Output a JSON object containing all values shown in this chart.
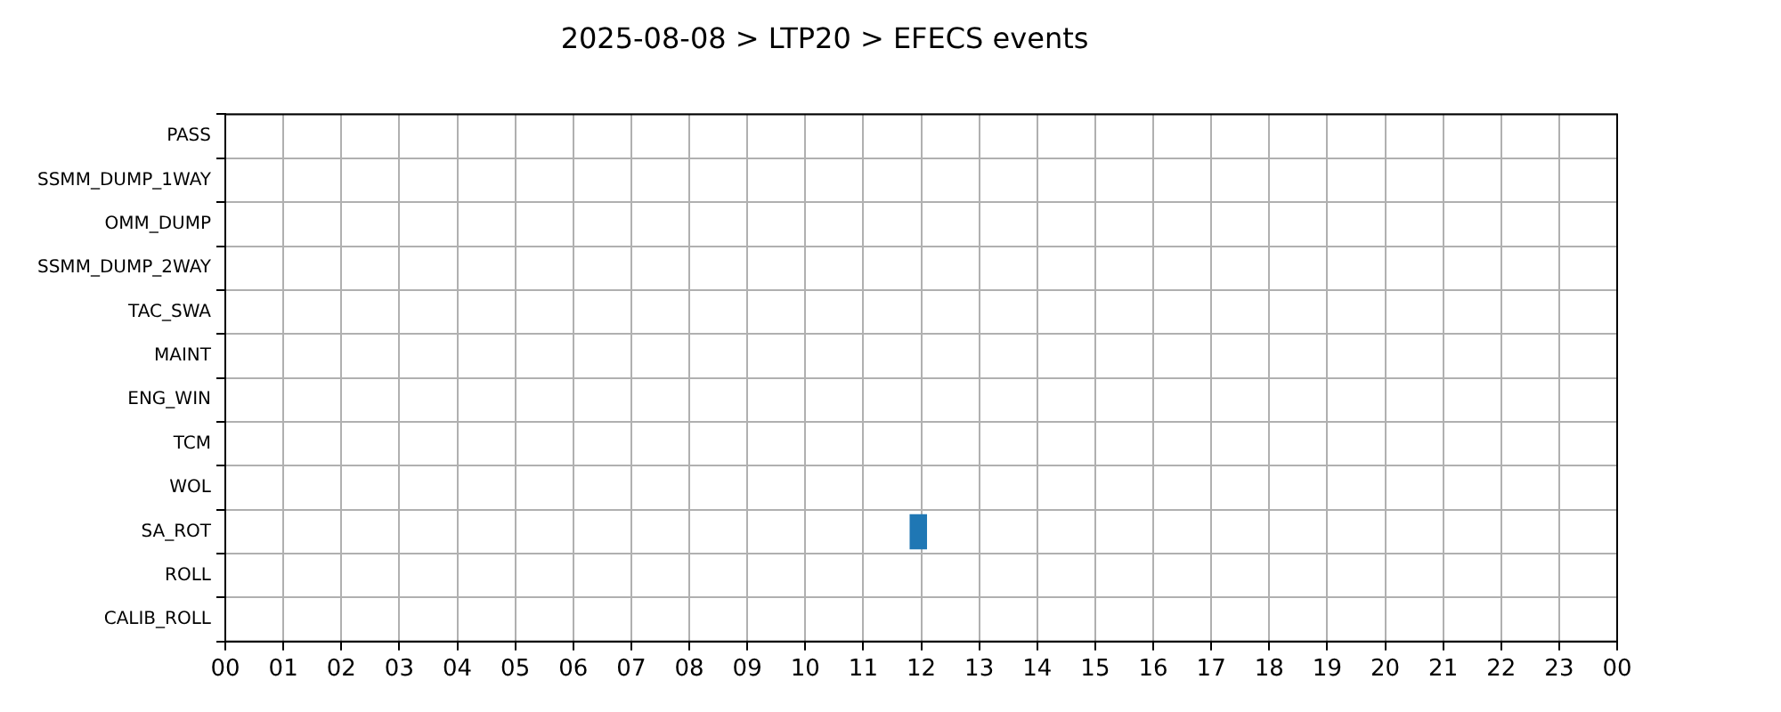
{
  "chart_data": {
    "type": "bar",
    "orientation": "horizontal",
    "title": "2025-08-08 > LTP20 > EFECS events",
    "categories": [
      "PASS",
      "SSMM_DUMP_1WAY",
      "OMM_DUMP",
      "SSMM_DUMP_2WAY",
      "TAC_SWA",
      "MAINT",
      "ENG_WIN",
      "TCM",
      "WOL",
      "SA_ROT",
      "ROLL",
      "CALIB_ROLL"
    ],
    "values": [
      null,
      null,
      null,
      null,
      null,
      null,
      null,
      null,
      null,
      0.3,
      null,
      null
    ],
    "base": [
      null,
      null,
      null,
      null,
      null,
      null,
      null,
      null,
      null,
      11.8,
      null,
      null
    ],
    "color": "#1f77b4",
    "xlim": [
      0,
      24
    ],
    "xticks": [
      {
        "value": 0,
        "label": "00"
      },
      {
        "value": 1,
        "label": "01"
      },
      {
        "value": 2,
        "label": "02"
      },
      {
        "value": 3,
        "label": "03"
      },
      {
        "value": 4,
        "label": "04"
      },
      {
        "value": 5,
        "label": "05"
      },
      {
        "value": 6,
        "label": "06"
      },
      {
        "value": 7,
        "label": "07"
      },
      {
        "value": 8,
        "label": "08"
      },
      {
        "value": 9,
        "label": "09"
      },
      {
        "value": 10,
        "label": "10"
      },
      {
        "value": 11,
        "label": "11"
      },
      {
        "value": 12,
        "label": "12"
      },
      {
        "value": 13,
        "label": "13"
      },
      {
        "value": 14,
        "label": "14"
      },
      {
        "value": 15,
        "label": "15"
      },
      {
        "value": 16,
        "label": "16"
      },
      {
        "value": 17,
        "label": "17"
      },
      {
        "value": 18,
        "label": "18"
      },
      {
        "value": 19,
        "label": "19"
      },
      {
        "value": 20,
        "label": "20"
      },
      {
        "value": 21,
        "label": "21"
      },
      {
        "value": 22,
        "label": "22"
      },
      {
        "value": 23,
        "label": "23"
      },
      {
        "value": 24,
        "label": "00"
      }
    ],
    "grid": true,
    "legend": false
  }
}
